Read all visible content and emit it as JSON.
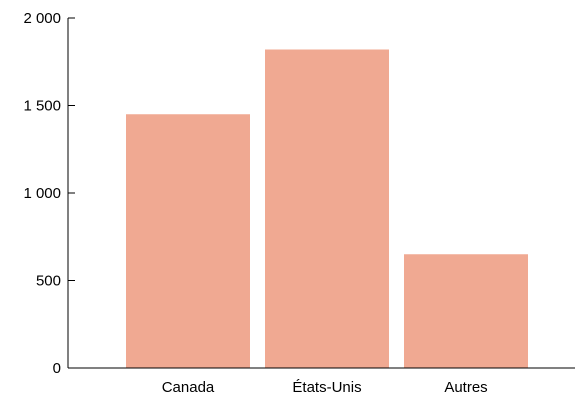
{
  "chart_data": {
    "type": "bar",
    "categories": [
      "Canada",
      "États-Unis",
      "Autres"
    ],
    "values": [
      1450,
      1820,
      650
    ],
    "ylim": [
      0,
      2000
    ],
    "yticks": [
      0,
      500,
      1000,
      1500,
      2000
    ],
    "ytick_labels": [
      "0",
      "500",
      "1 000",
      "1 500",
      "2 000"
    ],
    "grid": false,
    "legend": "none",
    "bar_color": "#f0a992",
    "title": "",
    "xlabel": "",
    "ylabel": ""
  }
}
